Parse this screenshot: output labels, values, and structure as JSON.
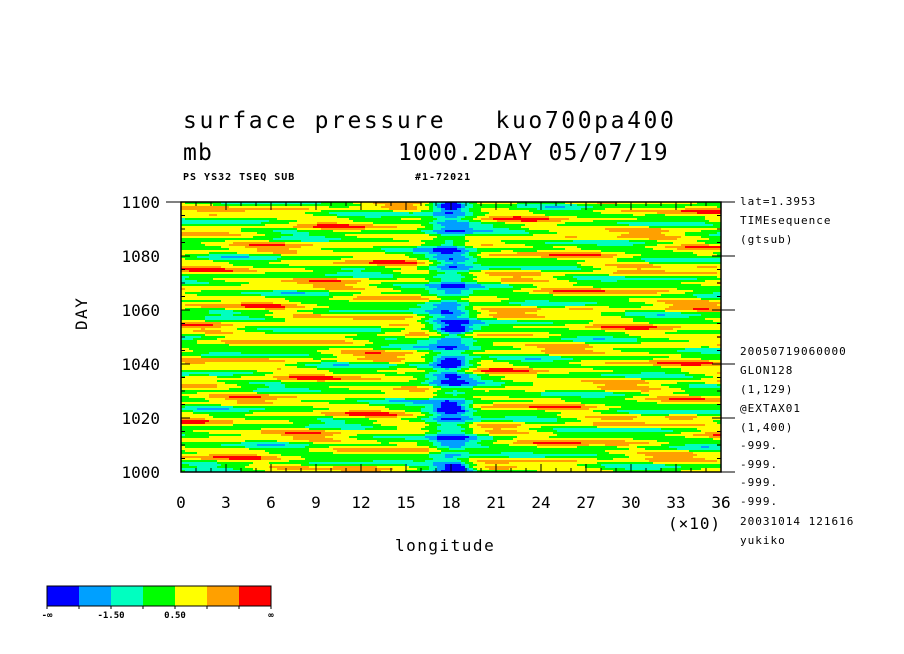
{
  "title": {
    "variable": "surface pressure",
    "experiment": "kuo700pa400",
    "units": "mb",
    "info": "1000.2DAY 05/07/19"
  },
  "subtitle": {
    "left": "PS YS32 TSEQ SUB",
    "right": "#1-72021"
  },
  "right_meta": {
    "top": [
      "lat=1.3953",
      "TIMEsequence",
      "(gtsub)"
    ],
    "bottom": [
      "20050719060000",
      "GLON128",
      "(1,129)",
      "@EXTAX01",
      "(1,400)",
      "-999.",
      "-999.",
      "-999.",
      "-999.",
      "20031014 121616",
      "yukiko"
    ]
  },
  "chart_data": {
    "type": "heatmap",
    "title": "surface pressure",
    "xlabel": "longitude",
    "ylabel": "DAY",
    "x_scale_note": "(×10)",
    "xlim": [
      0,
      36
    ],
    "ylim": [
      1000,
      1100
    ],
    "xticks": [
      "0",
      "3",
      "6",
      "9",
      "12",
      "15",
      "18",
      "21",
      "24",
      "27",
      "30",
      "33",
      "36"
    ],
    "yticks": [
      "1000",
      "1020",
      "1040",
      "1060",
      "1080",
      "1100"
    ],
    "colorbar": {
      "colors": [
        "#0000ff",
        "#00a0ff",
        "#00ffc0",
        "#00ff00",
        "#ffff00",
        "#ffa000",
        "#ff0000"
      ],
      "labels": [
        "-∞",
        "-1.50",
        "0.50",
        "∞"
      ]
    },
    "features": {
      "low_band_center_x": 18,
      "deep_lows": [
        {
          "x": 17.9,
          "y": 1098.5
        },
        {
          "x": 18.2,
          "y": 1052.5
        },
        {
          "x": 18.0,
          "y": 1040.5
        },
        {
          "x": 18.0,
          "y": 1023.5
        },
        {
          "x": 18.4,
          "y": 1001.5
        }
      ]
    }
  }
}
